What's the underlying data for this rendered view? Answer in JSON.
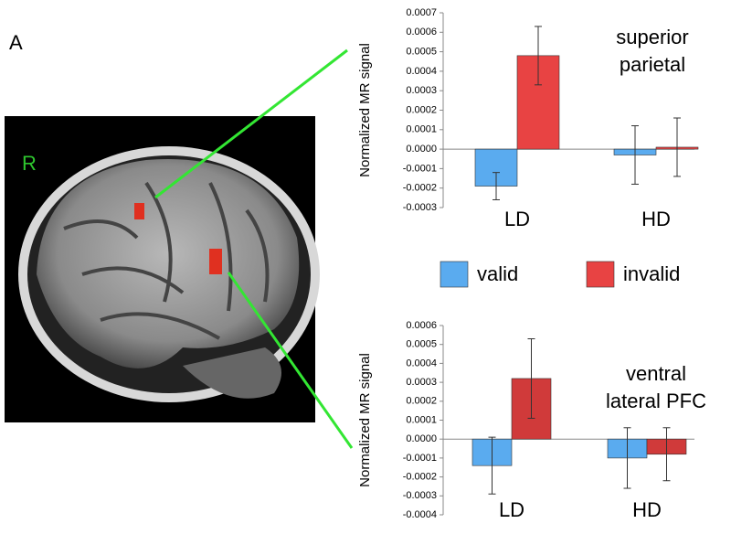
{
  "panel_label": "A",
  "image_label": "R",
  "chart_data": [
    {
      "type": "bar",
      "title": [
        "superior",
        "parietal"
      ],
      "y_label": "Normalized MR signal",
      "categories": [
        "LD",
        "HD"
      ],
      "ylim": [
        -0.0003,
        0.0007
      ],
      "yticks": [
        -0.0003,
        -0.0002,
        -0.0001,
        {
          "value": 0,
          "label": "0.0000"
        },
        0.0001,
        0.0002,
        0.0003,
        0.0004,
        0.0005,
        0.0006,
        0.0007
      ],
      "series": [
        {
          "name": "valid",
          "color": "#5aabef",
          "values": [
            -0.00019,
            -3e-05
          ],
          "errors": [
            7e-05,
            0.00015
          ]
        },
        {
          "name": "invalid",
          "color": "#e84343",
          "values": [
            0.00048,
            1e-05
          ],
          "errors": [
            0.00015,
            0.00015
          ]
        }
      ]
    },
    {
      "type": "bar",
      "title": [
        "ventral",
        "lateral PFC"
      ],
      "y_label": "Normalized MR signal",
      "categories": [
        "LD",
        "HD"
      ],
      "ylim": [
        -0.0004,
        0.0006
      ],
      "yticks": [
        -0.0004,
        -0.0003,
        -0.0002,
        -0.0001,
        {
          "value": 0,
          "label": "0.0000"
        },
        0.0001,
        0.0002,
        0.0003,
        0.0004,
        0.0005,
        0.0006
      ],
      "series": [
        {
          "color": "#5aabef",
          "values": [
            -0.00014,
            -0.0001
          ],
          "errors": [
            0.00015,
            0.00016
          ]
        },
        {
          "color": "#d03a3a",
          "values": [
            0.00032,
            -8e-05
          ],
          "errors": [
            0.00021,
            0.00014
          ]
        }
      ]
    }
  ]
}
